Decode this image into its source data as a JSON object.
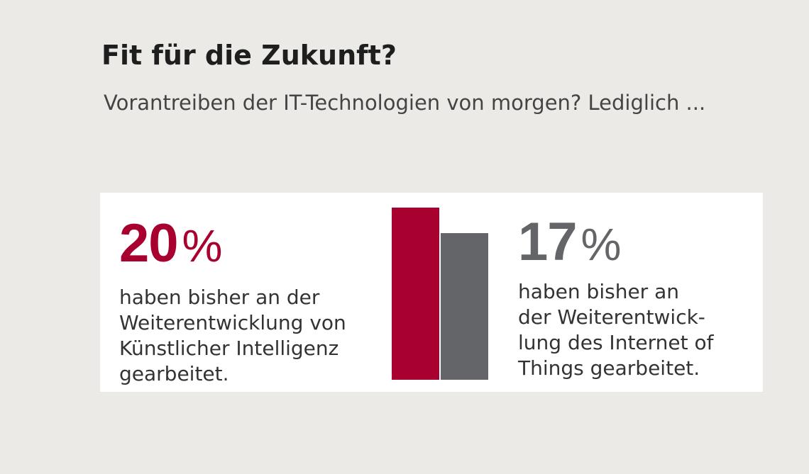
{
  "header": {
    "title": "Fit für die Zukunft?",
    "subtitle": "Vorantreiben der IT-Technologien von morgen?\nLediglich ..."
  },
  "stats": [
    {
      "number": "20",
      "percent_sign": "%",
      "description": "haben bisher an der\nWeiterentwicklung von\nKünstlicher Intelligenz\ngearbeitet."
    },
    {
      "number": "17",
      "percent_sign": "%",
      "description": "haben bisher an\nder Weiterentwick-\nlung des Internet of\nThings gearbeitet."
    }
  ],
  "colors": {
    "background": "#ebeae7",
    "card": "#ffffff",
    "accent_red": "#a8002f",
    "accent_gray": "#636568"
  },
  "chart_data": {
    "type": "bar",
    "categories": [
      "Künstliche Intelligenz",
      "Internet of Things"
    ],
    "values": [
      20,
      17
    ],
    "unit": "%",
    "ylim": [
      0,
      20
    ],
    "colors": [
      "#a8002f",
      "#636568"
    ],
    "grid": false,
    "legend": "none"
  }
}
